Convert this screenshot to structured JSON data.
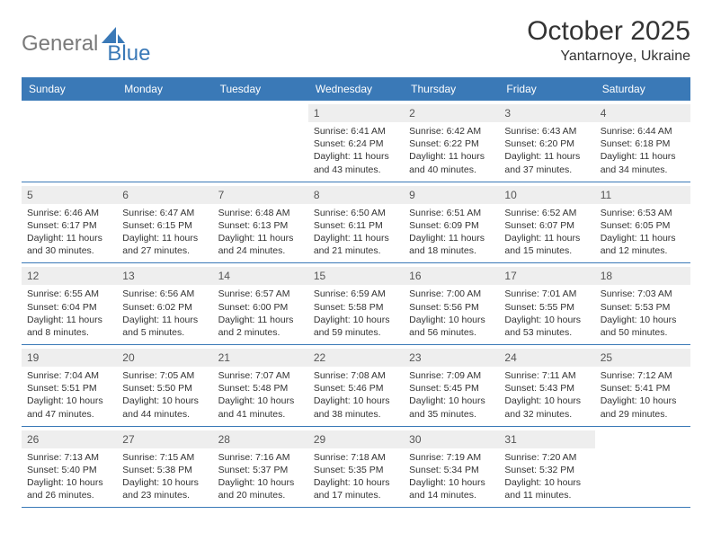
{
  "logo": {
    "gray": "General",
    "blue": "Blue"
  },
  "title": "October 2025",
  "location": "Yantarnoye, Ukraine",
  "colors": {
    "header_bg": "#3a79b7",
    "header_text": "#ffffff",
    "daynum_bg": "#eeeeee",
    "border": "#3a79b7",
    "text": "#333333",
    "logo_gray": "#7a7a7a",
    "logo_blue": "#3a79b7"
  },
  "day_labels": [
    "Sunday",
    "Monday",
    "Tuesday",
    "Wednesday",
    "Thursday",
    "Friday",
    "Saturday"
  ],
  "weeks": [
    [
      {
        "empty": true
      },
      {
        "empty": true
      },
      {
        "empty": true
      },
      {
        "n": "1",
        "sr": "Sunrise: 6:41 AM",
        "ss": "Sunset: 6:24 PM",
        "d1": "Daylight: 11 hours",
        "d2": "and 43 minutes."
      },
      {
        "n": "2",
        "sr": "Sunrise: 6:42 AM",
        "ss": "Sunset: 6:22 PM",
        "d1": "Daylight: 11 hours",
        "d2": "and 40 minutes."
      },
      {
        "n": "3",
        "sr": "Sunrise: 6:43 AM",
        "ss": "Sunset: 6:20 PM",
        "d1": "Daylight: 11 hours",
        "d2": "and 37 minutes."
      },
      {
        "n": "4",
        "sr": "Sunrise: 6:44 AM",
        "ss": "Sunset: 6:18 PM",
        "d1": "Daylight: 11 hours",
        "d2": "and 34 minutes."
      }
    ],
    [
      {
        "n": "5",
        "sr": "Sunrise: 6:46 AM",
        "ss": "Sunset: 6:17 PM",
        "d1": "Daylight: 11 hours",
        "d2": "and 30 minutes."
      },
      {
        "n": "6",
        "sr": "Sunrise: 6:47 AM",
        "ss": "Sunset: 6:15 PM",
        "d1": "Daylight: 11 hours",
        "d2": "and 27 minutes."
      },
      {
        "n": "7",
        "sr": "Sunrise: 6:48 AM",
        "ss": "Sunset: 6:13 PM",
        "d1": "Daylight: 11 hours",
        "d2": "and 24 minutes."
      },
      {
        "n": "8",
        "sr": "Sunrise: 6:50 AM",
        "ss": "Sunset: 6:11 PM",
        "d1": "Daylight: 11 hours",
        "d2": "and 21 minutes."
      },
      {
        "n": "9",
        "sr": "Sunrise: 6:51 AM",
        "ss": "Sunset: 6:09 PM",
        "d1": "Daylight: 11 hours",
        "d2": "and 18 minutes."
      },
      {
        "n": "10",
        "sr": "Sunrise: 6:52 AM",
        "ss": "Sunset: 6:07 PM",
        "d1": "Daylight: 11 hours",
        "d2": "and 15 minutes."
      },
      {
        "n": "11",
        "sr": "Sunrise: 6:53 AM",
        "ss": "Sunset: 6:05 PM",
        "d1": "Daylight: 11 hours",
        "d2": "and 12 minutes."
      }
    ],
    [
      {
        "n": "12",
        "sr": "Sunrise: 6:55 AM",
        "ss": "Sunset: 6:04 PM",
        "d1": "Daylight: 11 hours",
        "d2": "and 8 minutes."
      },
      {
        "n": "13",
        "sr": "Sunrise: 6:56 AM",
        "ss": "Sunset: 6:02 PM",
        "d1": "Daylight: 11 hours",
        "d2": "and 5 minutes."
      },
      {
        "n": "14",
        "sr": "Sunrise: 6:57 AM",
        "ss": "Sunset: 6:00 PM",
        "d1": "Daylight: 11 hours",
        "d2": "and 2 minutes."
      },
      {
        "n": "15",
        "sr": "Sunrise: 6:59 AM",
        "ss": "Sunset: 5:58 PM",
        "d1": "Daylight: 10 hours",
        "d2": "and 59 minutes."
      },
      {
        "n": "16",
        "sr": "Sunrise: 7:00 AM",
        "ss": "Sunset: 5:56 PM",
        "d1": "Daylight: 10 hours",
        "d2": "and 56 minutes."
      },
      {
        "n": "17",
        "sr": "Sunrise: 7:01 AM",
        "ss": "Sunset: 5:55 PM",
        "d1": "Daylight: 10 hours",
        "d2": "and 53 minutes."
      },
      {
        "n": "18",
        "sr": "Sunrise: 7:03 AM",
        "ss": "Sunset: 5:53 PM",
        "d1": "Daylight: 10 hours",
        "d2": "and 50 minutes."
      }
    ],
    [
      {
        "n": "19",
        "sr": "Sunrise: 7:04 AM",
        "ss": "Sunset: 5:51 PM",
        "d1": "Daylight: 10 hours",
        "d2": "and 47 minutes."
      },
      {
        "n": "20",
        "sr": "Sunrise: 7:05 AM",
        "ss": "Sunset: 5:50 PM",
        "d1": "Daylight: 10 hours",
        "d2": "and 44 minutes."
      },
      {
        "n": "21",
        "sr": "Sunrise: 7:07 AM",
        "ss": "Sunset: 5:48 PM",
        "d1": "Daylight: 10 hours",
        "d2": "and 41 minutes."
      },
      {
        "n": "22",
        "sr": "Sunrise: 7:08 AM",
        "ss": "Sunset: 5:46 PM",
        "d1": "Daylight: 10 hours",
        "d2": "and 38 minutes."
      },
      {
        "n": "23",
        "sr": "Sunrise: 7:09 AM",
        "ss": "Sunset: 5:45 PM",
        "d1": "Daylight: 10 hours",
        "d2": "and 35 minutes."
      },
      {
        "n": "24",
        "sr": "Sunrise: 7:11 AM",
        "ss": "Sunset: 5:43 PM",
        "d1": "Daylight: 10 hours",
        "d2": "and 32 minutes."
      },
      {
        "n": "25",
        "sr": "Sunrise: 7:12 AM",
        "ss": "Sunset: 5:41 PM",
        "d1": "Daylight: 10 hours",
        "d2": "and 29 minutes."
      }
    ],
    [
      {
        "n": "26",
        "sr": "Sunrise: 7:13 AM",
        "ss": "Sunset: 5:40 PM",
        "d1": "Daylight: 10 hours",
        "d2": "and 26 minutes."
      },
      {
        "n": "27",
        "sr": "Sunrise: 7:15 AM",
        "ss": "Sunset: 5:38 PM",
        "d1": "Daylight: 10 hours",
        "d2": "and 23 minutes."
      },
      {
        "n": "28",
        "sr": "Sunrise: 7:16 AM",
        "ss": "Sunset: 5:37 PM",
        "d1": "Daylight: 10 hours",
        "d2": "and 20 minutes."
      },
      {
        "n": "29",
        "sr": "Sunrise: 7:18 AM",
        "ss": "Sunset: 5:35 PM",
        "d1": "Daylight: 10 hours",
        "d2": "and 17 minutes."
      },
      {
        "n": "30",
        "sr": "Sunrise: 7:19 AM",
        "ss": "Sunset: 5:34 PM",
        "d1": "Daylight: 10 hours",
        "d2": "and 14 minutes."
      },
      {
        "n": "31",
        "sr": "Sunrise: 7:20 AM",
        "ss": "Sunset: 5:32 PM",
        "d1": "Daylight: 10 hours",
        "d2": "and 11 minutes."
      },
      {
        "empty": true
      }
    ]
  ]
}
